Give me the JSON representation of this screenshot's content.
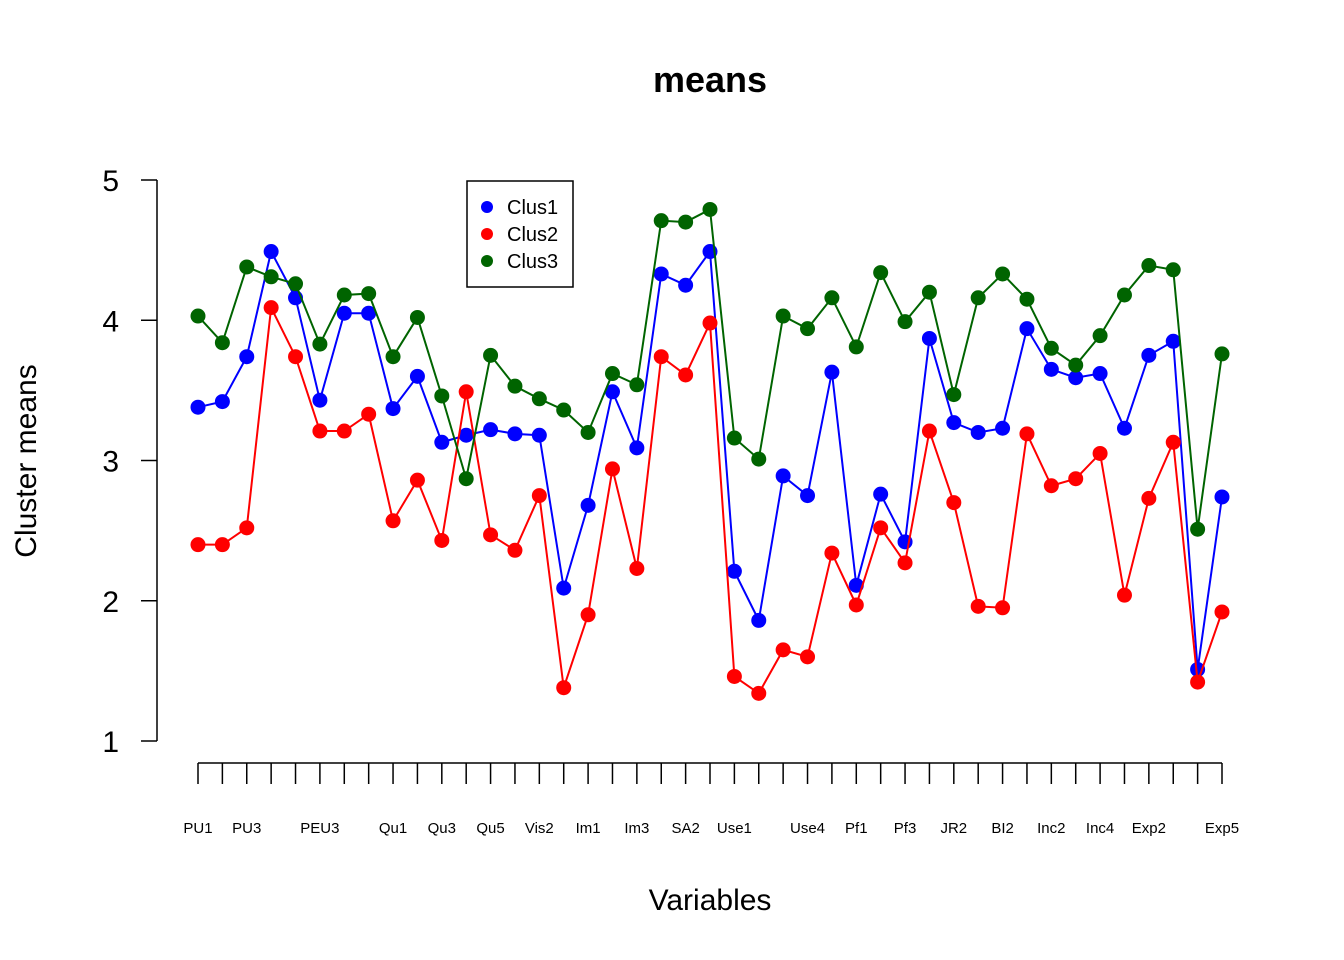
{
  "chart_data": {
    "type": "line",
    "title": "means",
    "xlabel": "Variables",
    "ylabel": "Cluster means",
    "ylim": [
      1,
      5
    ],
    "yticks": [
      1,
      2,
      3,
      4,
      5
    ],
    "grid": false,
    "legend_position": "top-center",
    "x_tick_labels": [
      "PU1",
      "",
      "PU3",
      "",
      "",
      "PEU3",
      "",
      "",
      "Qu1",
      "",
      "Qu3",
      "",
      "Qu5",
      "",
      "Vis2",
      "",
      "Im1",
      "",
      "Im3",
      "",
      "SA2",
      "",
      "Use1",
      "",
      "",
      "Use4",
      "",
      "Pf1",
      "",
      "Pf3",
      "",
      "JR2",
      "",
      "BI2",
      "",
      "Inc2",
      "",
      "Inc4",
      "",
      "Exp2",
      "",
      "",
      "Exp5"
    ],
    "series": [
      {
        "name": "Clus1",
        "color": "#0000ff",
        "values": [
          3.38,
          3.42,
          3.74,
          4.49,
          4.16,
          3.43,
          4.05,
          4.05,
          3.37,
          3.6,
          3.13,
          3.18,
          3.22,
          3.19,
          3.18,
          2.09,
          2.68,
          3.49,
          3.09,
          4.33,
          4.25,
          4.49,
          2.21,
          1.86,
          2.89,
          2.75,
          3.63,
          2.11,
          2.76,
          2.42,
          3.87,
          3.27,
          3.2,
          3.23,
          3.94,
          3.65,
          3.59,
          3.62,
          3.23,
          3.75,
          3.85,
          1.51,
          2.74
        ]
      },
      {
        "name": "Clus2",
        "color": "#ff0000",
        "values": [
          2.4,
          2.4,
          2.52,
          4.09,
          3.74,
          3.21,
          3.21,
          3.33,
          2.57,
          2.86,
          2.43,
          3.49,
          2.47,
          2.36,
          2.75,
          1.38,
          1.9,
          2.94,
          2.23,
          3.74,
          3.61,
          3.98,
          1.46,
          1.34,
          1.65,
          1.6,
          2.34,
          1.97,
          2.52,
          2.27,
          3.21,
          2.7,
          1.96,
          1.95,
          3.19,
          2.82,
          2.87,
          3.05,
          2.04,
          2.73,
          3.13,
          1.42,
          1.92
        ]
      },
      {
        "name": "Clus3",
        "color": "#006400",
        "values": [
          4.03,
          3.84,
          4.38,
          4.31,
          4.26,
          3.83,
          4.18,
          4.19,
          3.74,
          4.02,
          3.46,
          2.87,
          3.75,
          3.53,
          3.44,
          3.36,
          3.2,
          3.62,
          3.54,
          4.71,
          4.7,
          4.79,
          3.16,
          3.01,
          4.03,
          3.94,
          4.16,
          3.81,
          4.34,
          3.99,
          4.2,
          3.47,
          4.16,
          4.33,
          4.15,
          3.8,
          3.68,
          3.89,
          4.18,
          4.39,
          4.36,
          2.51,
          3.76
        ]
      }
    ]
  }
}
